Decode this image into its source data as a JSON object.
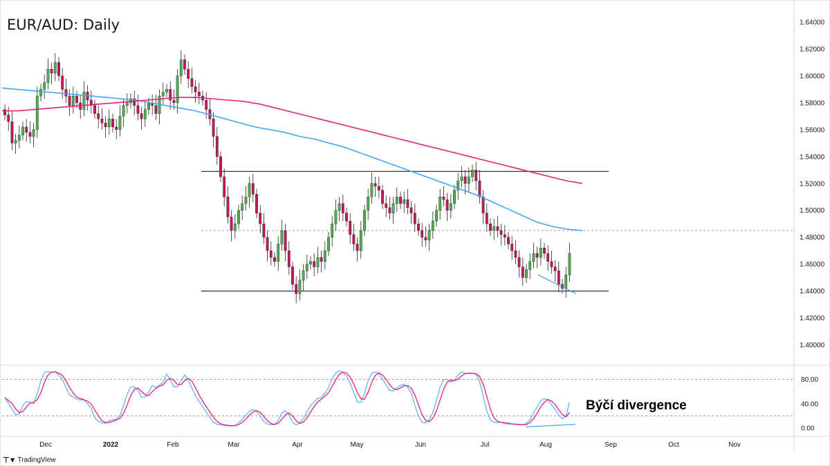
{
  "title": "EUR/AUD: Daily",
  "annotation": "Býčí divergence",
  "brand": "TradingView",
  "colors": {
    "up": "#4caf50",
    "down": "#c2185b",
    "sma_fast": "#42a5f5",
    "sma_slow": "#e91e78",
    "stoch_k": "#64b5f6",
    "stoch_d": "#e91e78",
    "divergence": "#42a5f5"
  },
  "chart_data": [
    {
      "type": "candlestick",
      "title": "EUR/AUD: Daily",
      "ylim": [
        1.39,
        1.65
      ],
      "y_ticks": [
        "1.64000",
        "1.62000",
        "1.60000",
        "1.58000",
        "1.56000",
        "1.54000",
        "1.52000",
        "1.50000",
        "1.48000",
        "1.46000",
        "1.44000",
        "1.42000",
        "1.40000"
      ],
      "x_ticks": [
        "Dec",
        "2022",
        "Feb",
        "Mar",
        "Apr",
        "May",
        "Jun",
        "Jul",
        "Aug",
        "Sep",
        "Oct",
        "Nov"
      ],
      "closes": [
        1.571,
        1.566,
        1.55,
        1.552,
        1.556,
        1.562,
        1.558,
        1.555,
        1.56,
        1.585,
        1.59,
        1.595,
        1.605,
        1.602,
        1.61,
        1.6,
        1.59,
        1.585,
        1.578,
        1.585,
        1.58,
        1.575,
        1.588,
        1.582,
        1.578,
        1.572,
        1.568,
        1.565,
        1.562,
        1.568,
        1.562,
        1.56,
        1.57,
        1.578,
        1.58,
        1.583,
        1.578,
        1.572,
        1.568,
        1.575,
        1.58,
        1.578,
        1.572,
        1.585,
        1.588,
        1.59,
        1.582,
        1.58,
        1.6,
        1.612,
        1.605,
        1.598,
        1.592,
        1.588,
        1.585,
        1.582,
        1.575,
        1.568,
        1.555,
        1.54,
        1.525,
        1.51,
        1.495,
        1.485,
        1.49,
        1.5,
        1.505,
        1.51,
        1.52,
        1.512,
        1.498,
        1.49,
        1.48,
        1.47,
        1.465,
        1.462,
        1.475,
        1.485,
        1.47,
        1.458,
        1.445,
        1.438,
        1.448,
        1.455,
        1.46,
        1.462,
        1.458,
        1.465,
        1.462,
        1.47,
        1.48,
        1.49,
        1.5,
        1.505,
        1.498,
        1.492,
        1.482,
        1.475,
        1.47,
        1.485,
        1.5,
        1.51,
        1.52,
        1.518,
        1.515,
        1.505,
        1.502,
        1.498,
        1.505,
        1.51,
        1.505,
        1.508,
        1.502,
        1.498,
        1.49,
        1.485,
        1.48,
        1.478,
        1.485,
        1.492,
        1.5,
        1.51,
        1.508,
        1.5,
        1.505,
        1.515,
        1.522,
        1.525,
        1.52,
        1.525,
        1.53,
        1.522,
        1.51,
        1.498,
        1.49,
        1.485,
        1.488,
        1.485,
        1.482,
        1.48,
        1.475,
        1.47,
        1.465,
        1.458,
        1.45,
        1.456,
        1.462,
        1.468,
        1.465,
        1.472,
        1.468,
        1.462,
        1.458,
        1.455,
        1.445,
        1.442,
        1.452,
        1.468
      ],
      "series": [
        {
          "name": "",
          "type": "sma",
          "values": [
            1.591,
            1.59,
            1.589,
            1.588,
            1.587,
            1.586,
            1.585,
            1.584,
            1.583,
            1.582,
            1.58,
            1.578,
            1.576,
            1.574,
            1.571,
            1.568,
            1.565,
            1.562,
            1.56,
            1.558,
            1.555,
            1.553,
            1.55,
            1.547,
            1.543,
            1.539,
            1.535,
            1.531,
            1.527,
            1.523,
            1.519,
            1.515,
            1.511,
            1.506,
            1.501,
            1.496,
            1.491,
            1.488,
            1.486,
            1.485
          ]
        },
        {
          "name": "",
          "type": "sma",
          "values": [
            1.574,
            1.574,
            1.575,
            1.576,
            1.577,
            1.578,
            1.579,
            1.58,
            1.581,
            1.582,
            1.583,
            1.584,
            1.584,
            1.583,
            1.582,
            1.581,
            1.579,
            1.576,
            1.573,
            1.57,
            1.567,
            1.564,
            1.561,
            1.558,
            1.555,
            1.552,
            1.549,
            1.546,
            1.543,
            1.54,
            1.537,
            1.534,
            1.531,
            1.528,
            1.525,
            1.522,
            1.52
          ]
        },
        {
          "name": "",
          "type": "stochastic",
          "ylim": [
            -5,
            95
          ],
          "y_ticks": [
            "80.00",
            "40.00",
            "0.00"
          ],
          "levels": [
            80,
            20
          ]
        }
      ],
      "annotations": [
        {
          "type": "resistance",
          "value": 1.529
        },
        {
          "type": "mid-line",
          "value": 1.485
        },
        {
          "type": "support",
          "value": 1.44
        }
      ]
    }
  ]
}
